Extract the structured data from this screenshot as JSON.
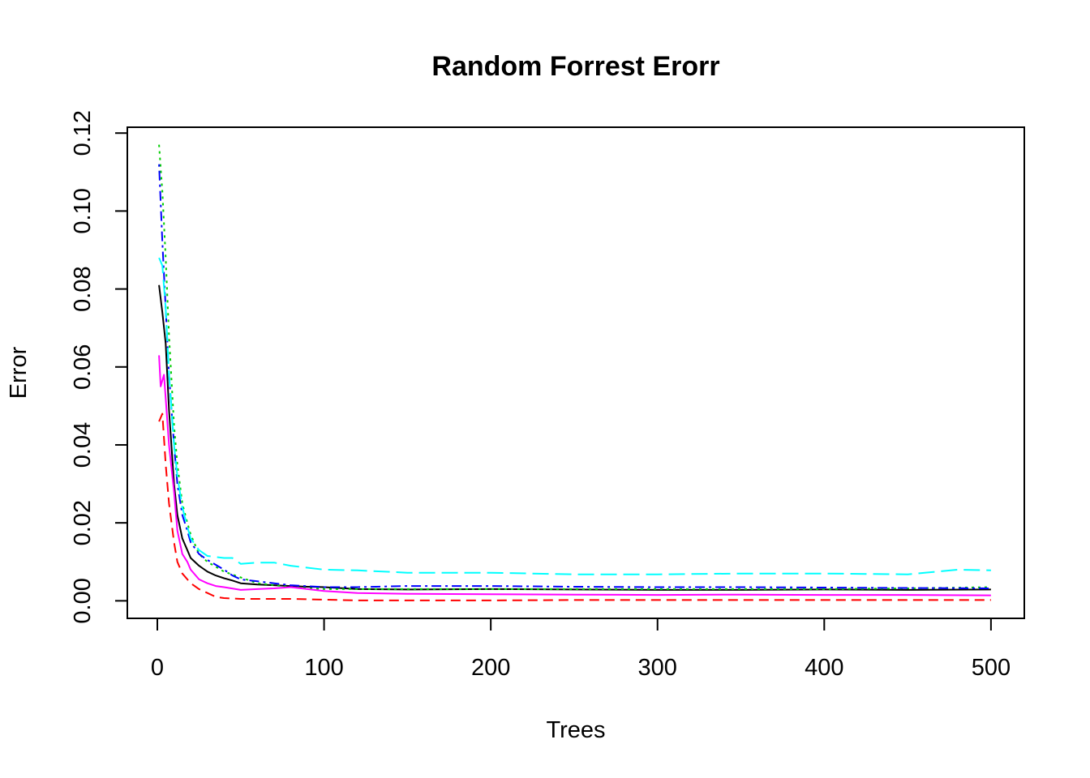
{
  "chart_data": {
    "type": "line",
    "title": "Random Forrest Erorr",
    "xlabel": "Trees",
    "ylabel": "Error",
    "xlim": [
      -18,
      520
    ],
    "ylim": [
      -0.0045,
      0.1215
    ],
    "xticks": [
      0,
      100,
      200,
      300,
      400,
      500
    ],
    "xtick_labels": [
      "0",
      "100",
      "200",
      "300",
      "400",
      "500"
    ],
    "yticks": [
      0.0,
      0.02,
      0.04,
      0.06,
      0.08,
      0.1,
      0.12
    ],
    "ytick_labels": [
      "0.00",
      "0.02",
      "0.04",
      "0.06",
      "0.08",
      "0.10",
      "0.12"
    ],
    "grid": false,
    "legend": "none",
    "series": [
      {
        "color": "#000000",
        "dash": "solid",
        "x": [
          1,
          3,
          5,
          7,
          10,
          12,
          15,
          18,
          20,
          25,
          30,
          35,
          40,
          45,
          50,
          60,
          70,
          80,
          90,
          100,
          120,
          150,
          200,
          250,
          300,
          350,
          400,
          450,
          500
        ],
        "y": [
          0.081,
          0.074,
          0.066,
          0.049,
          0.03,
          0.022,
          0.016,
          0.013,
          0.011,
          0.009,
          0.0075,
          0.0065,
          0.0058,
          0.0052,
          0.0045,
          0.0042,
          0.004,
          0.0038,
          0.0036,
          0.0035,
          0.003,
          0.0029,
          0.003,
          0.0029,
          0.0028,
          0.0028,
          0.0029,
          0.0028,
          0.0029
        ]
      },
      {
        "color": "#ff0000",
        "dash": "dashed",
        "x": [
          1,
          3,
          5,
          7,
          10,
          12,
          15,
          18,
          20,
          25,
          30,
          35,
          40,
          50,
          60,
          70,
          80,
          100,
          120,
          150,
          200,
          250,
          300,
          350,
          400,
          450,
          500
        ],
        "y": [
          0.046,
          0.048,
          0.035,
          0.025,
          0.015,
          0.01,
          0.007,
          0.0055,
          0.0045,
          0.003,
          0.002,
          0.001,
          0.0007,
          0.0005,
          0.0005,
          0.0005,
          0.0005,
          0.0003,
          0.0001,
          0.0001,
          0.0001,
          0.0002,
          0.0002,
          0.0002,
          0.0002,
          0.0002,
          0.0002
        ]
      },
      {
        "color": "#00cd00",
        "dash": "dotted",
        "x": [
          1,
          3,
          5,
          7,
          10,
          12,
          15,
          18,
          20,
          25,
          30,
          40,
          50,
          60,
          70,
          80,
          100,
          120,
          150,
          200,
          250,
          300,
          350,
          400,
          450,
          500
        ],
        "y": [
          0.117,
          0.105,
          0.088,
          0.068,
          0.045,
          0.035,
          0.025,
          0.02,
          0.017,
          0.012,
          0.01,
          0.0075,
          0.006,
          0.0045,
          0.004,
          0.0035,
          0.003,
          0.003,
          0.003,
          0.003,
          0.003,
          0.003,
          0.003,
          0.003,
          0.0032,
          0.0035
        ]
      },
      {
        "color": "#0000ff",
        "dash": "dashdot",
        "x": [
          1,
          3,
          5,
          7,
          10,
          12,
          15,
          18,
          20,
          25,
          30,
          40,
          45,
          50,
          60,
          70,
          80,
          100,
          120,
          150,
          200,
          250,
          300,
          350,
          400,
          450,
          500
        ],
        "y": [
          0.112,
          0.092,
          0.075,
          0.058,
          0.04,
          0.03,
          0.022,
          0.018,
          0.015,
          0.012,
          0.0105,
          0.008,
          0.0065,
          0.0055,
          0.005,
          0.0045,
          0.004,
          0.0035,
          0.0035,
          0.0038,
          0.0038,
          0.0036,
          0.0035,
          0.0035,
          0.0034,
          0.0033,
          0.0032
        ]
      },
      {
        "color": "#00ffff",
        "dash": "longdash",
        "x": [
          1,
          3,
          5,
          7,
          10,
          12,
          15,
          18,
          20,
          25,
          30,
          40,
          45,
          50,
          60,
          70,
          80,
          90,
          100,
          120,
          150,
          200,
          250,
          300,
          350,
          400,
          450,
          480,
          500
        ],
        "y": [
          0.088,
          0.086,
          0.075,
          0.058,
          0.04,
          0.032,
          0.024,
          0.019,
          0.016,
          0.013,
          0.0115,
          0.011,
          0.011,
          0.0095,
          0.0098,
          0.0098,
          0.009,
          0.0085,
          0.008,
          0.0078,
          0.0072,
          0.0072,
          0.0068,
          0.0068,
          0.007,
          0.007,
          0.0068,
          0.008,
          0.0078
        ]
      },
      {
        "color": "#ff00ff",
        "dash": "solid",
        "x": [
          1,
          2,
          4,
          5,
          7,
          10,
          12,
          15,
          18,
          20,
          25,
          30,
          35,
          40,
          50,
          60,
          70,
          80,
          90,
          100,
          120,
          150,
          200,
          250,
          300,
          350,
          400,
          450,
          500
        ],
        "y": [
          0.063,
          0.055,
          0.058,
          0.052,
          0.04,
          0.028,
          0.018,
          0.012,
          0.01,
          0.008,
          0.0055,
          0.0045,
          0.0038,
          0.0035,
          0.0028,
          0.003,
          0.0032,
          0.0035,
          0.003,
          0.0025,
          0.002,
          0.0018,
          0.0017,
          0.0016,
          0.0015,
          0.0016,
          0.0015,
          0.0015,
          0.0014
        ]
      }
    ]
  }
}
